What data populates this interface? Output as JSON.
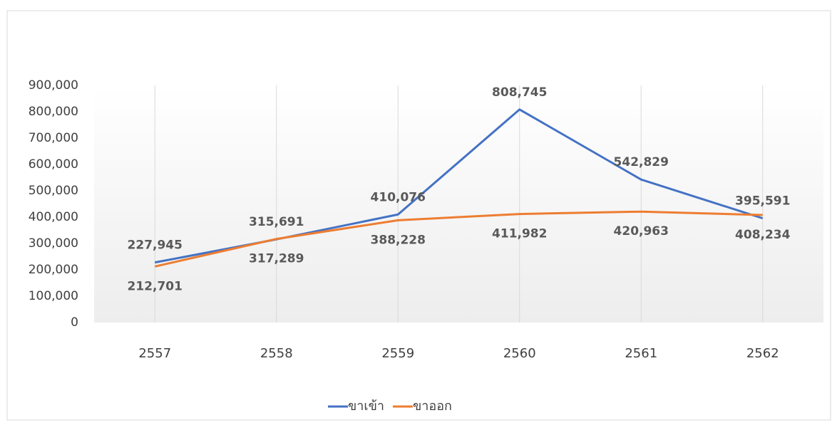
{
  "chart_data": {
    "type": "line",
    "categories": [
      "2557",
      "2558",
      "2559",
      "2560",
      "2561",
      "2562"
    ],
    "series": [
      {
        "name": "ขาเข้า",
        "color": "#4472c4",
        "values": [
          227945,
          315691,
          410076,
          808745,
          542829,
          395591
        ],
        "value_labels": [
          "227,945",
          "315,691",
          "410,076",
          "808,745",
          "542,829",
          "395,591"
        ]
      },
      {
        "name": "ขาออก",
        "color": "#ed7d31",
        "values": [
          212701,
          317289,
          388228,
          411982,
          420963,
          408234
        ],
        "value_labels": [
          "212,701",
          "317,289",
          "388,228",
          "411,982",
          "420,963",
          "408,234"
        ]
      }
    ],
    "ylim": [
      0,
      900000
    ],
    "yticks": [
      0,
      {
        "value": 100000,
        "label": "100,000"
      },
      {
        "value": 200000,
        "label": "200,000"
      },
      {
        "value": 300000,
        "label": "300,000"
      },
      {
        "value": 400000,
        "label": "400,000"
      },
      {
        "value": 500000,
        "label": "500,000"
      },
      {
        "value": 600000,
        "label": "600,000"
      },
      {
        "value": 700000,
        "label": "700,000"
      },
      {
        "value": 800000,
        "label": "800,000"
      },
      {
        "value": 900000,
        "label": "900,000"
      }
    ],
    "grid": true,
    "legend": "bottom"
  }
}
